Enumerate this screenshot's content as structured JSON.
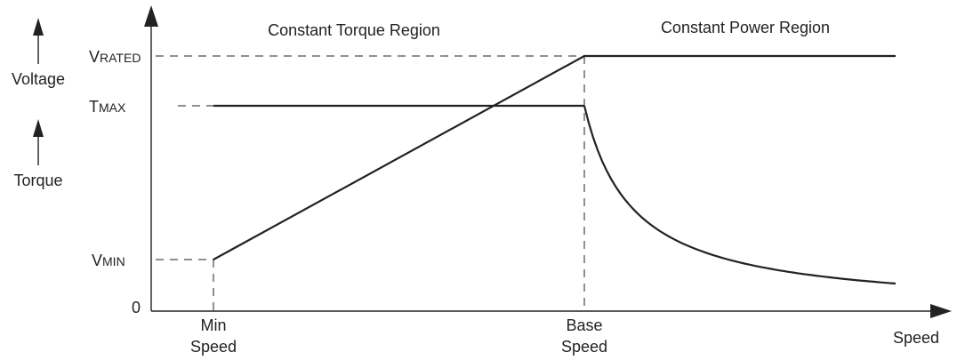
{
  "regions": {
    "left": "Constant Torque Region",
    "right": "Constant Power Region"
  },
  "y_labels": {
    "v_rated": {
      "lead": "V",
      "rest": "RATED"
    },
    "t_max": {
      "lead": "T",
      "rest": "MAX"
    },
    "v_min": {
      "lead": "V",
      "rest": "MIN"
    },
    "zero": "0"
  },
  "side_labels": {
    "voltage": "Voltage",
    "torque": "Torque"
  },
  "x_labels": {
    "min_speed": [
      "Min",
      "Speed"
    ],
    "base_speed": [
      "Base",
      "Speed"
    ],
    "speed": "Speed"
  }
}
